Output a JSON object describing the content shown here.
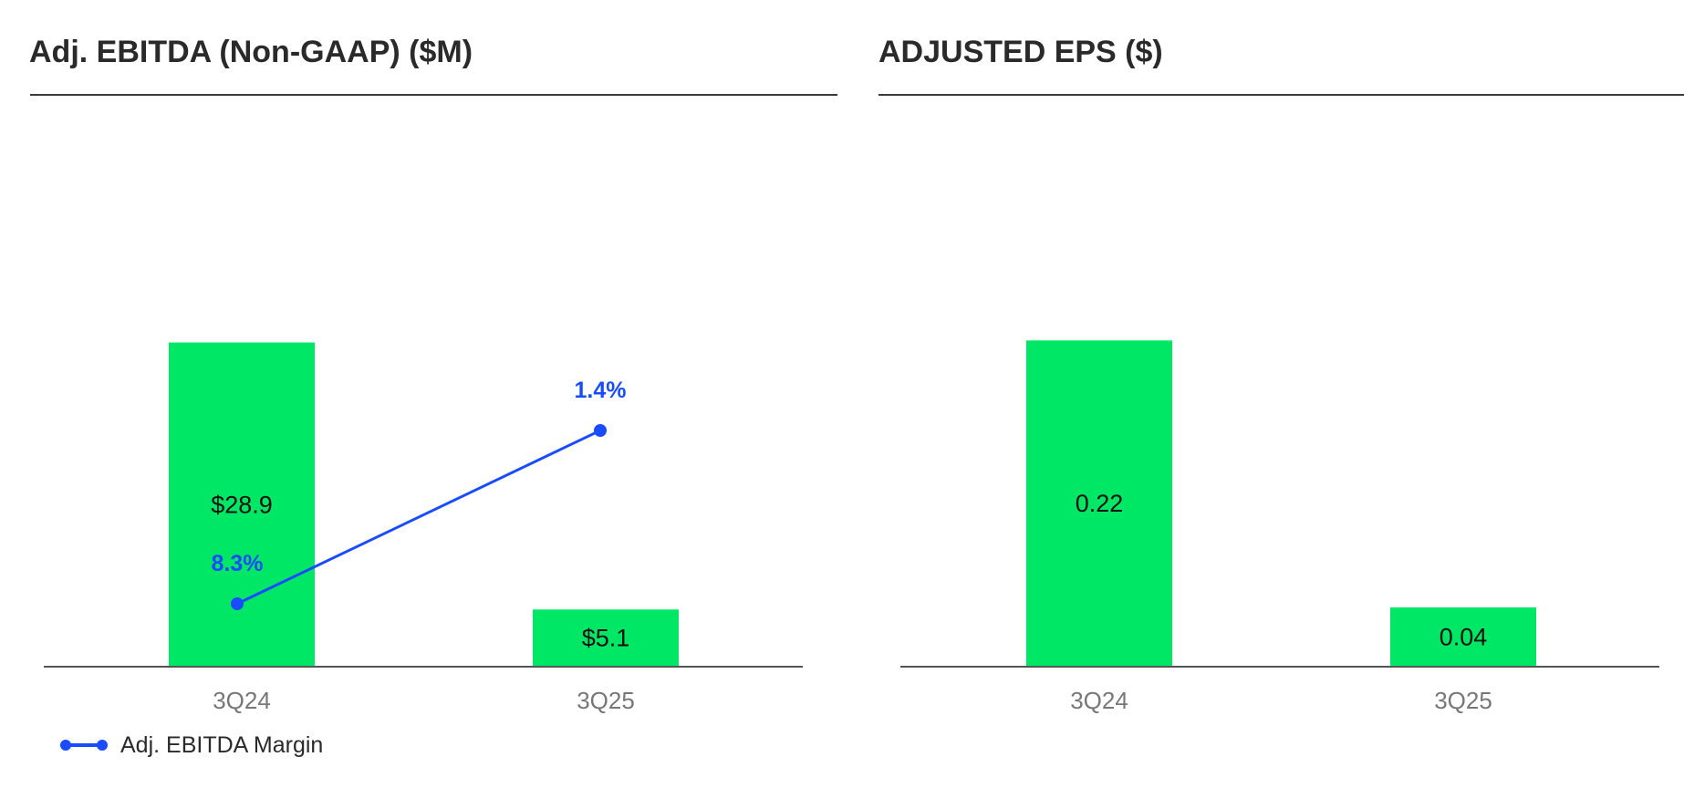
{
  "colors": {
    "bar": "#00e766",
    "line": "#1a4cff",
    "axis": "#555555",
    "title": "#2a2a2a"
  },
  "chart_data": [
    {
      "type": "bar",
      "title": "Adj. EBITDA (Non-GAAP) ($M)",
      "categories": [
        "3Q24",
        "3Q25"
      ],
      "series": [
        {
          "type": "bar",
          "values": [
            28.9,
            5.1
          ],
          "labels": [
            "$28.9",
            "$5.1"
          ]
        },
        {
          "type": "line",
          "name": "Adj. EBITDA Margin",
          "values": [
            8.3,
            1.4
          ],
          "labels": [
            "8.3%",
            "1.4%"
          ]
        }
      ],
      "legend": {
        "position": "bottom-left",
        "entries": [
          "Adj. EBITDA Margin"
        ]
      },
      "grid": false
    },
    {
      "type": "bar",
      "title": "ADJUSTED EPS ($)",
      "categories": [
        "3Q24",
        "3Q25"
      ],
      "series": [
        {
          "type": "bar",
          "values": [
            0.22,
            0.04
          ],
          "labels": [
            "0.22",
            "0.04"
          ]
        }
      ],
      "grid": false
    }
  ]
}
